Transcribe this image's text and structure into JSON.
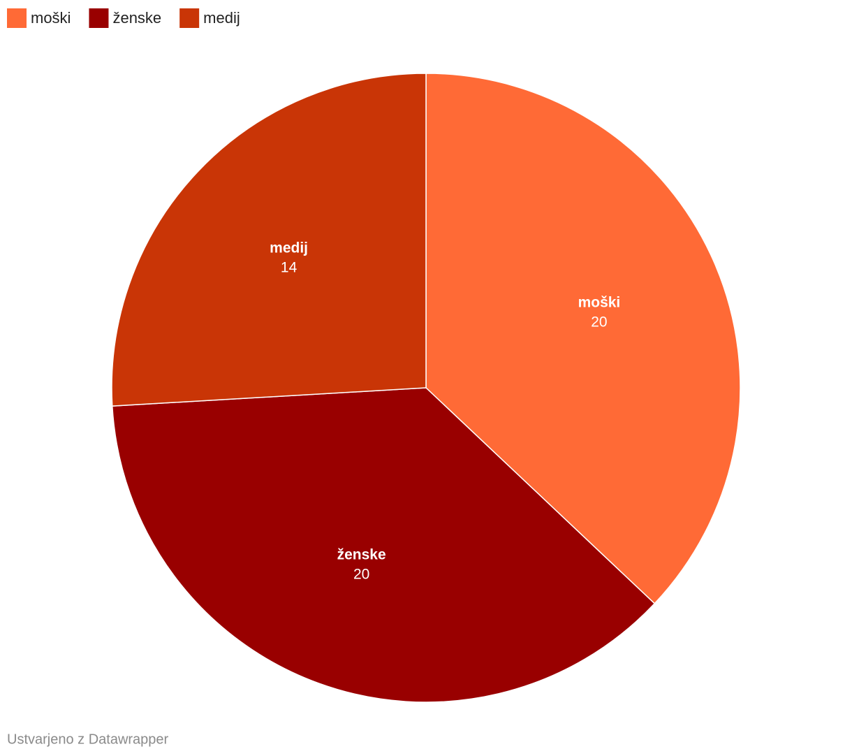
{
  "chart_data": {
    "type": "pie",
    "categories": [
      "moški",
      "ženske",
      "medij"
    ],
    "values": [
      20,
      20,
      14
    ],
    "colors": [
      "#ff6a36",
      "#990000",
      "#c93506"
    ],
    "legend": "top-left",
    "footer": "Ustvarjeno z Datawrapper"
  }
}
